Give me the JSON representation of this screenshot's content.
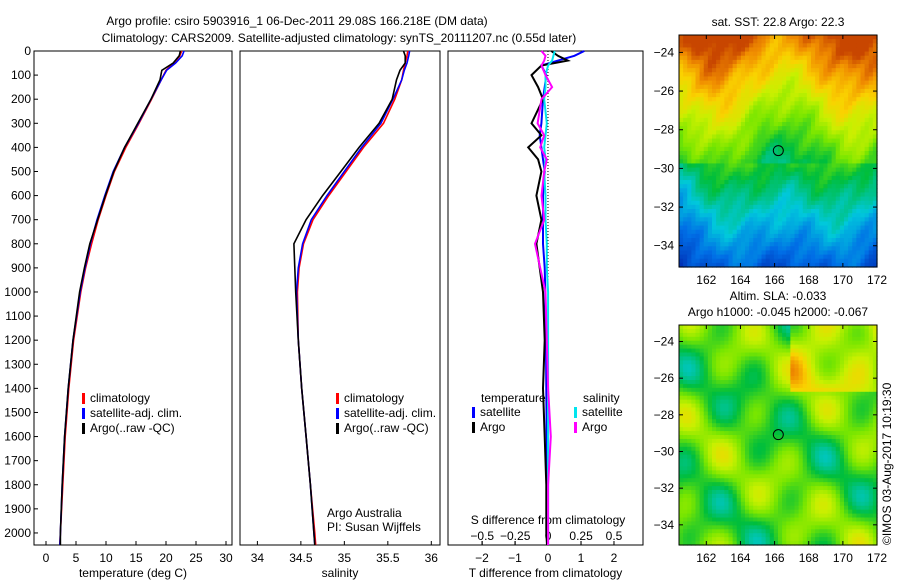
{
  "title_line1": "Argo profile: csiro 5903916_1 06-Dec-2011 29.08S 166.218E (DM data)",
  "title_line2": "Climatology: CARS2009. Satellite-adjusted climatology: synTS_20111207.nc (0.55d later)",
  "credit": "©IMOS 03-Aug-2017 10:19:30",
  "colors": {
    "climatology": "#ff0000",
    "satellite": "#0000ff",
    "argo": "#000000",
    "sal_satellite": "#00e5ee",
    "sal_argo": "#ff00ff"
  },
  "chart_data": [
    {
      "type": "line",
      "name": "temperature",
      "xlabel": "temperature (deg C)",
      "ylabel": "",
      "xlim": [
        -2,
        31
      ],
      "ylim": [
        2050,
        0
      ],
      "xticks": [
        0,
        5,
        10,
        15,
        20,
        25,
        30
      ],
      "yticks": [
        0,
        100,
        200,
        300,
        400,
        500,
        600,
        700,
        800,
        900,
        1000,
        1100,
        1200,
        1300,
        1400,
        1500,
        1600,
        1700,
        1800,
        1900,
        2000
      ],
      "legend": [
        "climatology",
        "satellite-adj. clim.",
        "Argo(..raw -QC)"
      ],
      "depth": [
        0,
        20,
        50,
        80,
        120,
        200,
        300,
        400,
        500,
        600,
        700,
        800,
        900,
        1000,
        1200,
        1400,
        1600,
        1800,
        2000,
        2050
      ],
      "series": [
        {
          "name": "climatology",
          "values": [
            22.6,
            22.3,
            21.3,
            20.0,
            19.2,
            17.6,
            15.5,
            13.3,
            11.4,
            10.0,
            8.7,
            7.6,
            6.6,
            5.8,
            4.6,
            3.8,
            3.2,
            2.8,
            2.4,
            2.3
          ]
        },
        {
          "name": "satellite",
          "values": [
            23.0,
            22.7,
            21.6,
            20.1,
            19.2,
            17.5,
            15.4,
            13.1,
            11.2,
            9.8,
            8.5,
            7.4,
            6.5,
            5.7,
            4.5,
            3.7,
            3.1,
            2.7,
            2.4,
            2.3
          ]
        },
        {
          "name": "argo",
          "values": [
            22.4,
            22.2,
            21.2,
            19.3,
            19.0,
            17.5,
            15.3,
            13.1,
            11.3,
            9.9,
            8.6,
            7.3,
            6.4,
            5.6,
            4.5,
            3.7,
            3.1,
            2.7,
            2.4,
            2.4
          ]
        }
      ]
    },
    {
      "type": "line",
      "name": "salinity",
      "xlabel": "salinity",
      "ylabel": "",
      "xlim": [
        33.8,
        36.1
      ],
      "ylim": [
        2050,
        0
      ],
      "xticks": [
        34,
        34.5,
        35,
        35.5,
        36
      ],
      "legend": [
        "climatology",
        "satellite-adj. clim.",
        "Argo(..raw -QC)"
      ],
      "annotation": [
        "Argo Australia",
        "PI: Susan Wijffels"
      ],
      "depth": [
        0,
        20,
        50,
        80,
        120,
        200,
        300,
        400,
        500,
        600,
        700,
        800,
        900,
        1000,
        1200,
        1400,
        1600,
        1800,
        2000,
        2050
      ],
      "series": [
        {
          "name": "climatology",
          "values": [
            35.73,
            35.72,
            35.7,
            35.68,
            35.66,
            35.58,
            35.45,
            35.22,
            35.02,
            34.82,
            34.64,
            34.53,
            34.48,
            34.46,
            34.47,
            34.51,
            34.56,
            34.61,
            34.66,
            34.67
          ]
        },
        {
          "name": "satellite",
          "values": [
            35.75,
            35.74,
            35.72,
            35.69,
            35.66,
            35.56,
            35.42,
            35.2,
            35.0,
            34.8,
            34.62,
            34.52,
            34.47,
            34.45,
            34.47,
            34.51,
            34.56,
            34.61,
            34.65,
            34.66
          ]
        },
        {
          "name": "argo",
          "values": [
            35.68,
            35.7,
            35.7,
            35.64,
            35.6,
            35.55,
            35.4,
            35.17,
            34.96,
            34.75,
            34.56,
            34.42,
            34.43,
            34.44,
            34.47,
            34.51,
            34.56,
            34.61,
            34.65,
            34.66
          ]
        }
      ]
    },
    {
      "type": "line",
      "name": "differences",
      "xlabel": "T difference from climatology",
      "x2label": "S difference from climatology",
      "xlim": [
        -3.03,
        2.88
      ],
      "xticks": [
        -2,
        -1,
        0,
        1,
        2
      ],
      "x2ticks": [
        -0.5,
        -0.25,
        0,
        0.25,
        0.5
      ],
      "x2lim": [
        -0.76,
        0.72
      ],
      "ylim": [
        2050,
        0
      ],
      "legend_left": {
        "title": "temperature",
        "items": [
          "satellite",
          "Argo"
        ]
      },
      "legend_right": {
        "title": "salinity",
        "items": [
          "satellite",
          "Argo"
        ]
      },
      "depth": [
        0,
        20,
        40,
        60,
        100,
        150,
        200,
        300,
        350,
        400,
        450,
        500,
        600,
        700,
        800,
        900,
        1000,
        1200,
        1400,
        1600,
        1800,
        2000,
        2050
      ],
      "series": [
        {
          "name": "T satellite",
          "axis": "T",
          "values": [
            1.1,
            0.8,
            0.3,
            -0.2,
            -0.05,
            -0.1,
            -0.15,
            -0.2,
            -0.25,
            -0.2,
            -0.15,
            -0.1,
            -0.15,
            -0.15,
            -0.15,
            -0.1,
            -0.08,
            -0.06,
            -0.05,
            -0.04,
            -0.03,
            -0.02,
            -0.02
          ]
        },
        {
          "name": "T argo",
          "axis": "T",
          "values": [
            0.1,
            0.3,
            0.6,
            -0.2,
            -0.5,
            -0.3,
            -0.15,
            -0.5,
            -0.2,
            -0.6,
            -0.3,
            -0.2,
            -0.35,
            -0.2,
            -0.35,
            -0.25,
            -0.15,
            -0.1,
            -0.15,
            -0.1,
            -0.05,
            -0.05,
            -0.03
          ]
        },
        {
          "name": "S satellite",
          "axis": "S",
          "values": [
            0.05,
            0.04,
            0.03,
            0.0,
            -0.02,
            -0.02,
            -0.03,
            -0.01,
            -0.02,
            -0.03,
            -0.02,
            -0.03,
            -0.02,
            -0.02,
            -0.01,
            -0.01,
            0.0,
            0.0,
            0.0,
            0.0,
            0.0,
            0.0,
            0.0
          ]
        },
        {
          "name": "S argo",
          "axis": "S",
          "values": [
            -0.05,
            -0.02,
            -0.03,
            -0.05,
            -0.02,
            0.03,
            -0.05,
            -0.08,
            -0.03,
            -0.06,
            -0.01,
            -0.03,
            -0.05,
            -0.03,
            -0.1,
            -0.06,
            -0.02,
            -0.01,
            0.0,
            0.02,
            0.0,
            0.0,
            0.0
          ]
        }
      ]
    },
    {
      "type": "heatmap",
      "name": "sst-map",
      "title": "sat. SST: 22.8 Argo: 22.3",
      "xlim": [
        160.4,
        172
      ],
      "ylim": [
        -35.1,
        -23.1
      ],
      "xticks": [
        162,
        164,
        166,
        168,
        170,
        172
      ],
      "yticks": [
        -24,
        -26,
        -28,
        -30,
        -32,
        -34
      ],
      "marker": {
        "lon": 166.218,
        "lat": -29.08
      }
    },
    {
      "type": "heatmap",
      "name": "sla-map",
      "title": [
        "Altim. SLA: -0.033",
        "Argo h1000: -0.045 h2000: -0.067"
      ],
      "xlim": [
        160.4,
        172
      ],
      "ylim": [
        -35.1,
        -23.1
      ],
      "xticks": [
        162,
        164,
        166,
        168,
        170,
        172
      ],
      "yticks": [
        -24,
        -26,
        -28,
        -30,
        -32,
        -34
      ],
      "marker": {
        "lon": 166.218,
        "lat": -29.08
      }
    }
  ]
}
